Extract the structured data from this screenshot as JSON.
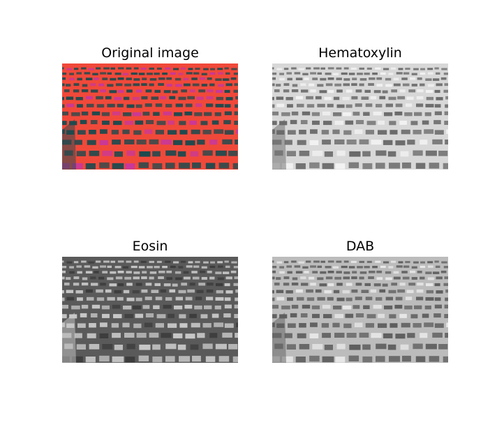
{
  "panels": [
    {
      "title": "Original image",
      "channel": "original"
    },
    {
      "title": "Hematoxylin",
      "channel": "hematoxylin"
    },
    {
      "title": "Eosin",
      "channel": "eosin"
    },
    {
      "title": "DAB",
      "channel": "dab"
    }
  ],
  "colors": {
    "background": "#ffffff",
    "original_ground": "#f0493a",
    "original_cars": "#1d4a4e",
    "original_highlight": "#c8389a",
    "hematoxylin_ground": "#d8d8d8",
    "hematoxylin_cars": "#6a6a6a",
    "eosin_ground": "#5a5a5a",
    "eosin_cars": "#c8c8c8",
    "dab_ground": "#bcbcbc",
    "dab_cars": "#5e5e5e"
  }
}
